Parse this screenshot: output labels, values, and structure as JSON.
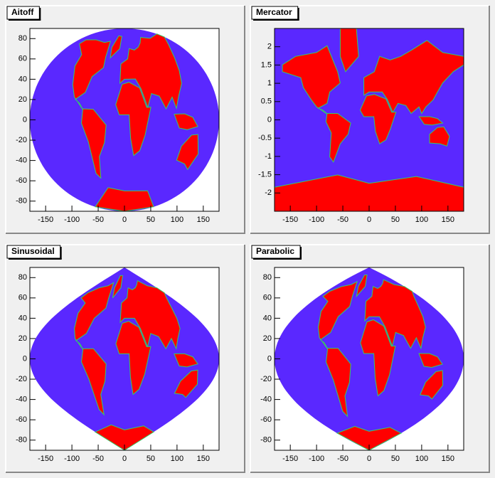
{
  "chart_data": [
    {
      "type": "map",
      "projection": "aitoff",
      "title": "Aitoff",
      "xlim": [
        -180,
        180
      ],
      "ylim": [
        -90,
        90
      ],
      "xticks": [
        -150,
        -100,
        -50,
        0,
        50,
        100,
        150
      ],
      "yticks": [
        -80,
        -60,
        -40,
        -20,
        0,
        20,
        40,
        60,
        80
      ]
    },
    {
      "type": "map",
      "projection": "mercator",
      "title": "Mercator",
      "xlim": [
        -180,
        180
      ],
      "ylim": [
        -2.5,
        2.5
      ],
      "xticks": [
        -150,
        -100,
        -50,
        0,
        50,
        100,
        150
      ],
      "yticks": [
        -2,
        -1.5,
        -1,
        -0.5,
        0,
        0.5,
        1,
        1.5,
        2
      ]
    },
    {
      "type": "map",
      "projection": "sinusoidal",
      "title": "Sinusoidal",
      "xlim": [
        -180,
        180
      ],
      "ylim": [
        -90,
        90
      ],
      "xticks": [
        -150,
        -100,
        -50,
        0,
        50,
        100,
        150
      ],
      "yticks": [
        -80,
        -60,
        -40,
        -20,
        0,
        20,
        40,
        60,
        80
      ]
    },
    {
      "type": "map",
      "projection": "parabolic",
      "title": "Parabolic",
      "xlim": [
        -180,
        180
      ],
      "ylim": [
        -90,
        90
      ],
      "xticks": [
        -150,
        -100,
        -50,
        0,
        50,
        100,
        150
      ],
      "yticks": [
        -80,
        -60,
        -40,
        -20,
        0,
        20,
        40,
        60,
        80
      ]
    }
  ]
}
